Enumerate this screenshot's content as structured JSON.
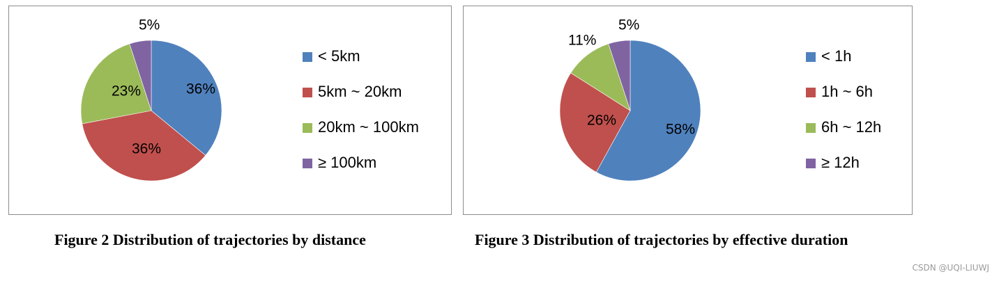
{
  "chart_data": [
    {
      "type": "pie",
      "title": "",
      "categories": [
        "< 5km",
        "5km ~ 20km",
        "20km ~ 100km",
        "≥ 100km"
      ],
      "values": [
        36,
        36,
        23,
        5
      ],
      "labels": [
        "36%",
        "36%",
        "23%",
        "5%"
      ],
      "colors": [
        "#4F81BD",
        "#C0504D",
        "#9BBB59",
        "#8064A2"
      ],
      "legend_position": "right"
    },
    {
      "type": "pie",
      "title": "",
      "categories": [
        "< 1h",
        "1h ~ 6h",
        "6h ~ 12h",
        "≥ 12h"
      ],
      "values": [
        58,
        26,
        11,
        5
      ],
      "labels": [
        "58%",
        "26%",
        "11%",
        "5%"
      ],
      "colors": [
        "#4F81BD",
        "#C0504D",
        "#9BBB59",
        "#8064A2"
      ],
      "legend_position": "right"
    }
  ],
  "captions": [
    "Figure 2 Distribution of trajectories by distance",
    "Figure 3 Distribution of trajectories by effective duration"
  ],
  "watermark": "CSDN @UQI-LIUWJ"
}
